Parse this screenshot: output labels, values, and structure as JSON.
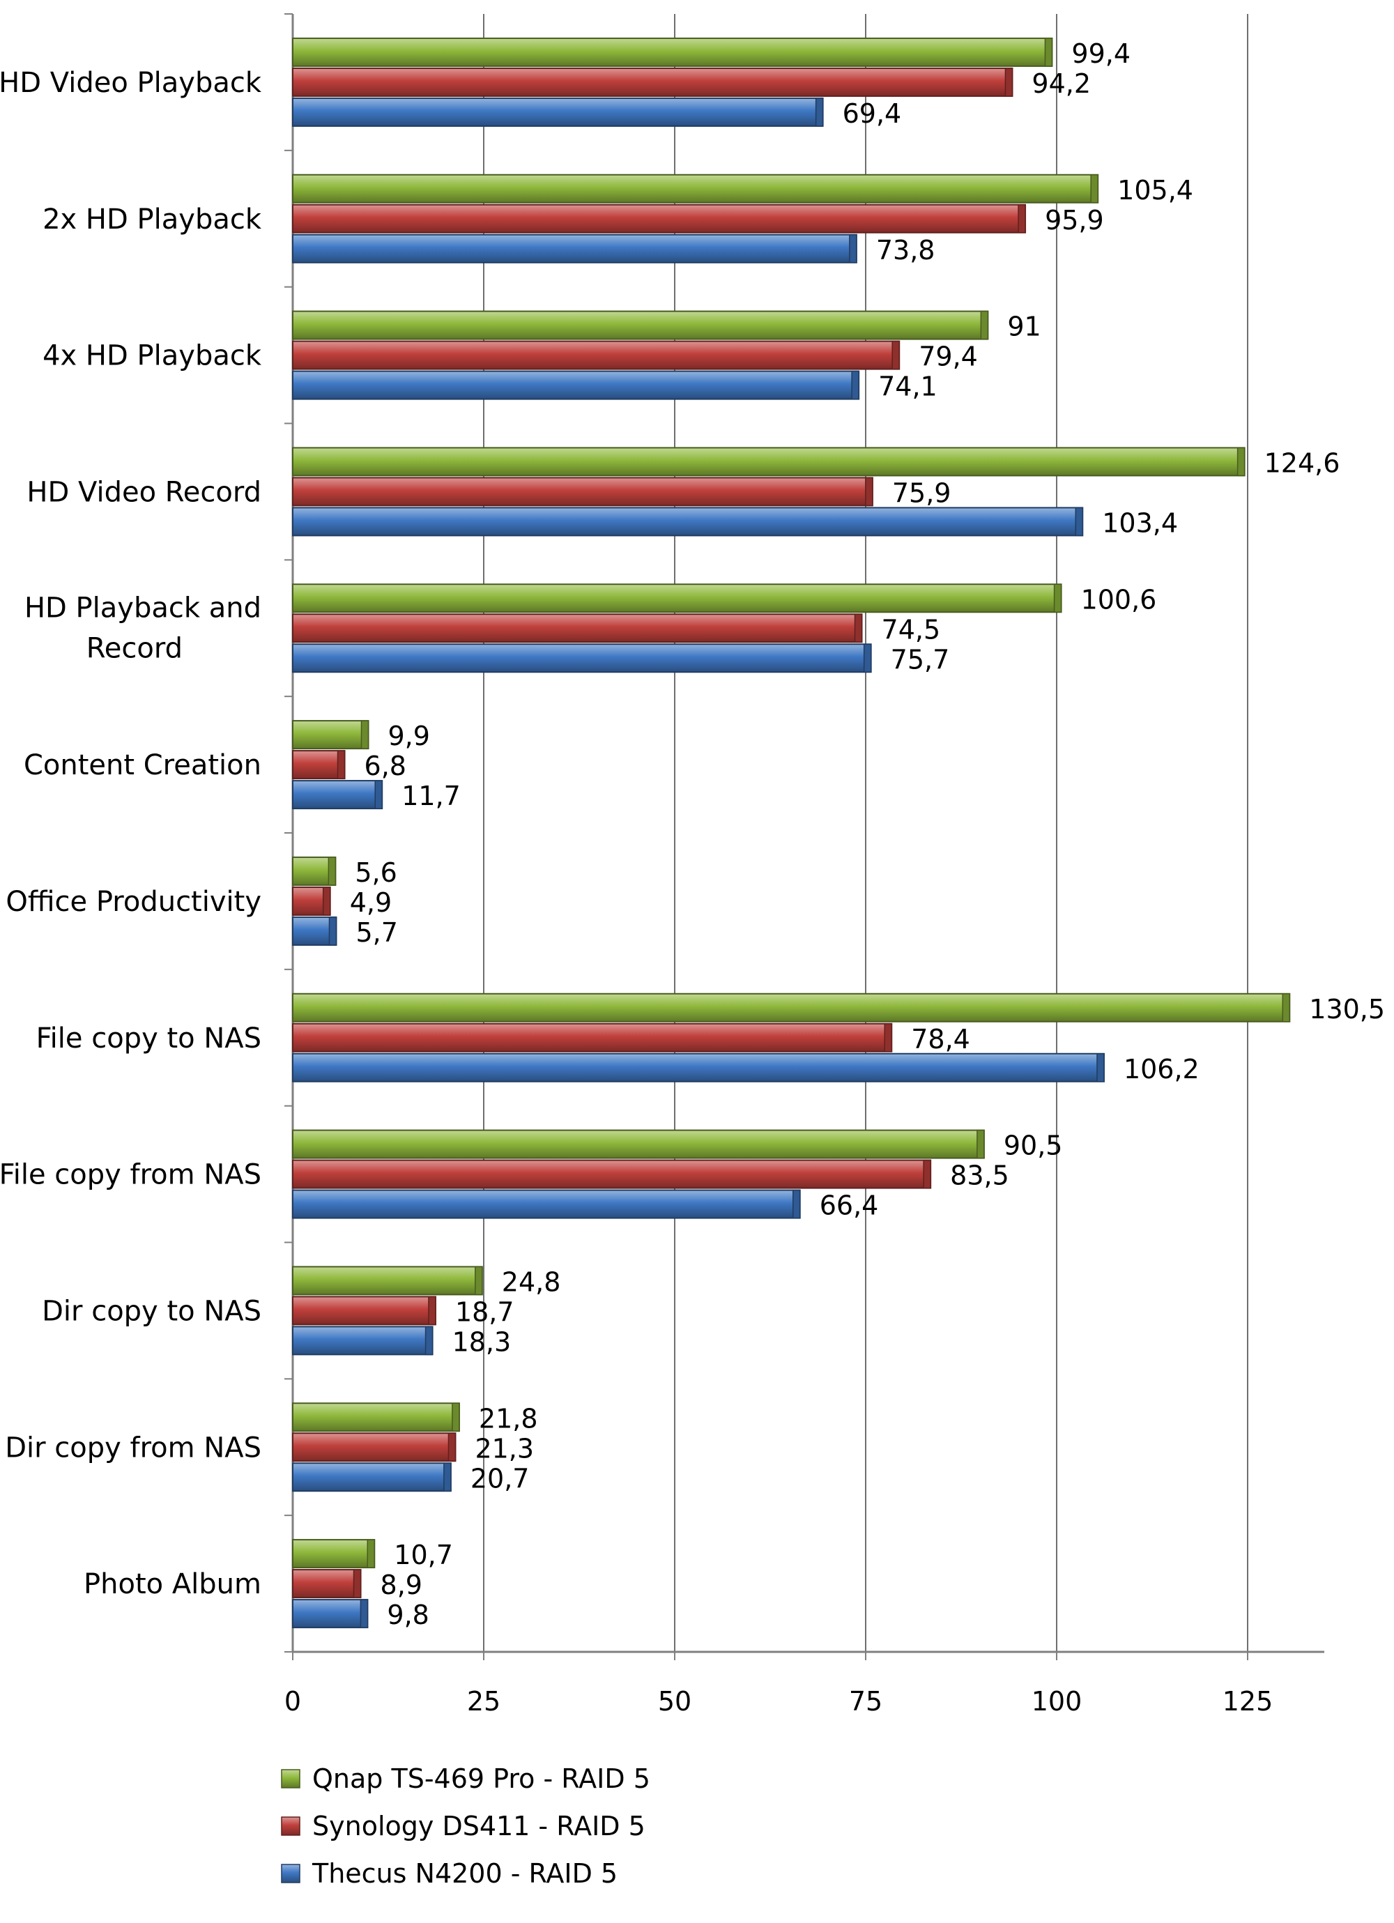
{
  "chart_data": {
    "type": "bar",
    "orientation": "horizontal",
    "categories": [
      "HD Video Playback",
      "2x HD Playback",
      "4x HD Playback",
      "HD Video Record",
      "HD Playback and Record",
      "Content Creation",
      "Office Productivity",
      "File copy to NAS",
      "File copy from NAS",
      "Dir copy to NAS",
      "Dir copy from NAS",
      "Photo Album"
    ],
    "series": [
      {
        "name": "Qnap TS-469 Pro - RAID 5",
        "color": "#8fb83c",
        "values": [
          99.4,
          105.4,
          91,
          124.6,
          100.6,
          9.9,
          5.6,
          130.5,
          90.5,
          24.8,
          21.8,
          10.7
        ],
        "labels": [
          "99,4",
          "105,4",
          "91",
          "124,6",
          "100,6",
          "9,9",
          "5,6",
          "130,5",
          "90,5",
          "24,8",
          "21,8",
          "10,7"
        ]
      },
      {
        "name": "Synology DS411 - RAID 5",
        "color": "#c0403c",
        "values": [
          94.2,
          95.9,
          79.4,
          75.9,
          74.5,
          6.8,
          4.9,
          78.4,
          83.5,
          18.7,
          21.3,
          8.9
        ],
        "labels": [
          "94,2",
          "95,9",
          "79,4",
          "75,9",
          "74,5",
          "6,8",
          "4,9",
          "78,4",
          "83,5",
          "18,7",
          "21,3",
          "8,9"
        ]
      },
      {
        "name": "Thecus N4200 - RAID 5",
        "color": "#3f78c4",
        "values": [
          69.4,
          73.8,
          74.1,
          103.4,
          75.7,
          11.7,
          5.7,
          106.2,
          66.4,
          18.3,
          20.7,
          9.8
        ],
        "labels": [
          "69,4",
          "73,8",
          "74,1",
          "103,4",
          "75,7",
          "11,7",
          "5,7",
          "106,2",
          "66,4",
          "18,3",
          "20,7",
          "9,8"
        ]
      }
    ],
    "x_ticks": [
      "0",
      "25",
      "50",
      "75",
      "100",
      "125"
    ],
    "xlim": [
      0,
      135
    ],
    "title": "",
    "xlabel": "",
    "ylabel": "",
    "grid": "vertical major gridlines",
    "legend_position": "bottom-left"
  }
}
